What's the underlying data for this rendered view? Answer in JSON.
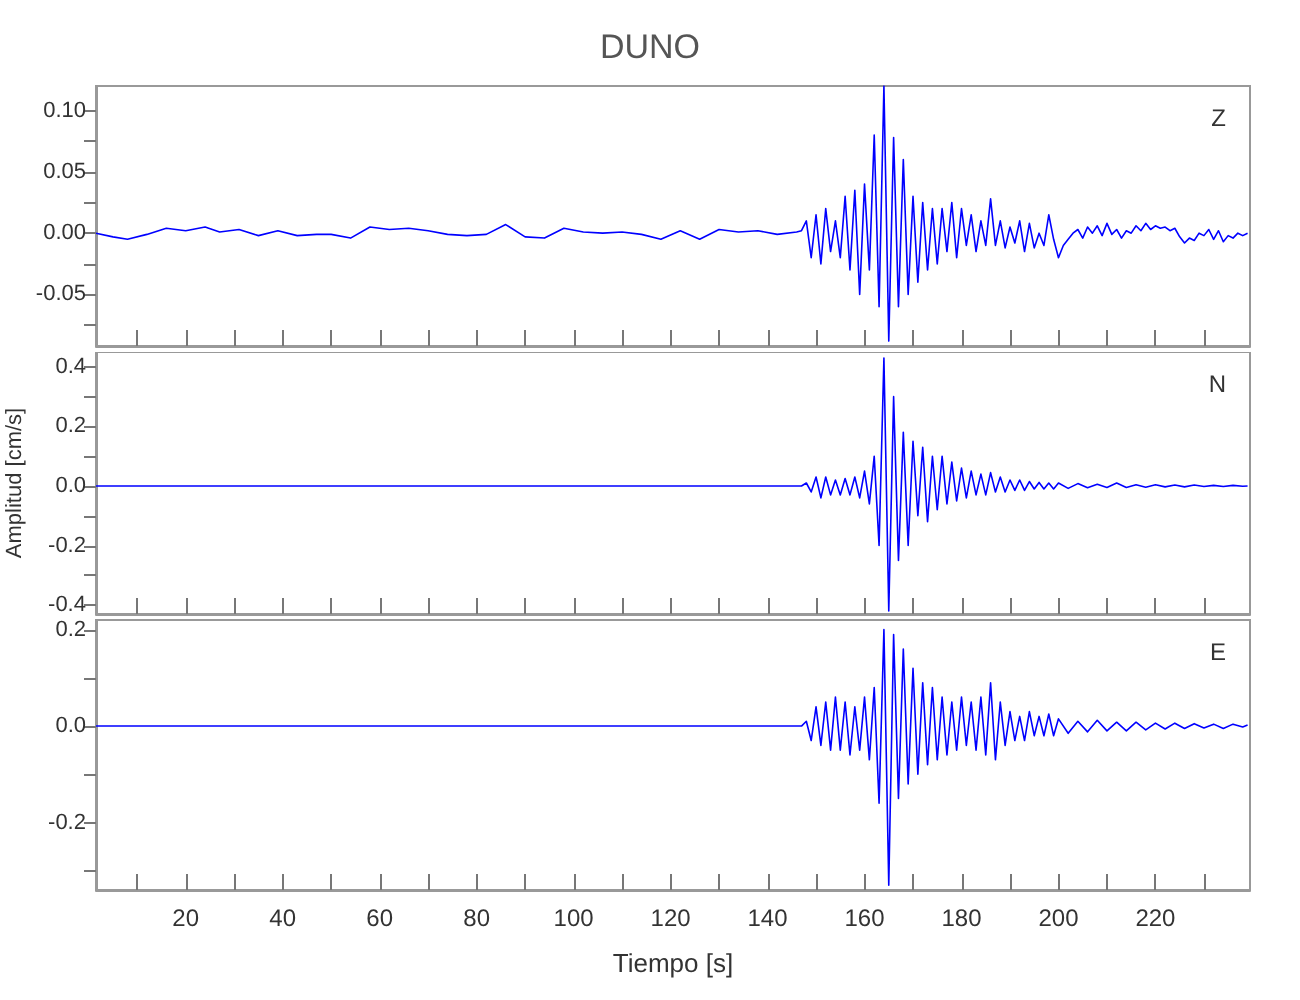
{
  "chart_data": [
    {
      "type": "line",
      "title": "DUNO",
      "annotations": [
        "Z"
      ],
      "tick_labels": "y",
      "grid": false,
      "line_style": "solid",
      "xlim": [
        1.5,
        239.5
      ],
      "xticks": [
        {
          "value": 10,
          "label": null
        },
        20,
        {
          "value": 30,
          "label": null
        },
        40,
        {
          "value": 50,
          "label": null
        },
        60,
        {
          "value": 70,
          "label": null
        },
        80,
        {
          "value": 90,
          "label": null
        },
        100,
        {
          "value": 110,
          "label": null
        },
        120,
        {
          "value": 130,
          "label": null
        },
        140,
        {
          "value": 150,
          "label": null
        },
        160,
        {
          "value": 170,
          "label": null
        },
        180,
        {
          "value": 190,
          "label": null
        },
        200,
        {
          "value": 210,
          "label": null
        },
        220,
        {
          "value": 230,
          "label": null
        }
      ],
      "ylim": [
        -0.092,
        0.12
      ],
      "yticks": [
        {
          "value": -0.075,
          "label": null
        },
        {
          "value": -0.05,
          "label": "-0.05"
        },
        {
          "value": -0.025,
          "label": null
        },
        {
          "value": 0,
          "label": "0.00"
        },
        {
          "value": 0.025,
          "label": null
        },
        {
          "value": 0.05,
          "label": "0.05"
        },
        {
          "value": 0.075,
          "label": null
        },
        {
          "value": 0.1,
          "label": "0.10"
        }
      ],
      "series": [
        {
          "color": "#0000ff",
          "x": [
            1.5,
            5,
            8,
            12,
            16,
            20,
            24,
            27,
            31,
            35,
            39,
            43,
            47,
            50,
            54,
            58,
            62,
            66,
            70,
            74,
            78,
            82,
            86,
            90,
            94,
            98,
            102,
            106,
            110,
            114,
            118,
            122,
            126,
            130,
            134,
            138,
            142,
            146,
            147,
            148,
            149,
            150,
            151,
            152,
            153,
            154,
            155,
            156,
            157,
            158,
            159,
            160,
            161,
            162,
            163,
            164,
            165,
            166,
            167,
            168,
            169,
            170,
            171,
            172,
            173,
            174,
            175,
            176,
            177,
            178,
            179,
            180,
            181,
            182,
            183,
            184,
            185,
            186,
            187,
            188,
            189,
            190,
            191,
            192,
            193,
            194,
            195,
            196,
            197,
            198,
            199,
            200,
            201,
            202,
            203,
            204,
            205,
            206,
            207,
            208,
            209,
            210,
            211,
            212,
            213,
            214,
            215,
            216,
            217,
            218,
            219,
            220,
            221,
            222,
            223,
            224,
            225,
            226,
            227,
            228,
            229,
            230,
            231,
            232,
            233,
            234,
            235,
            236,
            237,
            238,
            239
          ],
          "values": [
            0,
            -0.003,
            -0.005,
            -0.001,
            0.004,
            0.002,
            0.005,
            0.001,
            0.003,
            -0.002,
            0.002,
            -0.002,
            -0.001,
            -0.001,
            -0.004,
            0.005,
            0.003,
            0.004,
            0.002,
            -0.001,
            -0.002,
            -0.001,
            0.007,
            -0.003,
            -0.004,
            0.004,
            0.001,
            0,
            0.001,
            -0.001,
            -0.005,
            0.002,
            -0.005,
            0.003,
            0.001,
            0.002,
            -0.001,
            0.001,
            0.002,
            0.01,
            -0.02,
            0.015,
            -0.025,
            0.02,
            -0.015,
            0.01,
            -0.02,
            0.03,
            -0.03,
            0.035,
            -0.05,
            0.04,
            -0.03,
            0.08,
            -0.06,
            0.12,
            -0.088,
            0.078,
            -0.06,
            0.06,
            -0.05,
            0.03,
            -0.04,
            0.025,
            -0.03,
            0.02,
            -0.025,
            0.02,
            -0.015,
            0.025,
            -0.02,
            0.02,
            -0.01,
            0.015,
            -0.015,
            0.01,
            -0.01,
            0.028,
            -0.01,
            0.01,
            -0.012,
            0.005,
            -0.008,
            0.01,
            -0.015,
            0.008,
            -0.012,
            0,
            -0.01,
            0.015,
            -0.005,
            -0.02,
            -0.01,
            -0.005,
            0,
            0.003,
            -0.004,
            0.005,
            0,
            0.006,
            -0.002,
            0.008,
            -0.001,
            0.003,
            -0.004,
            0.002,
            0,
            0.006,
            0.002,
            0.008,
            0.003,
            0.006,
            0.004,
            0.005,
            0.002,
            0.004,
            -0.003,
            -0.008,
            -0.004,
            -0.006,
            0,
            -0.002,
            0.003,
            -0.005,
            0.002,
            -0.007,
            -0.002,
            -0.004,
            0,
            -0.002,
            0
          ]
        }
      ]
    },
    {
      "type": "line",
      "ylabel": "Amplitud [cm/s]",
      "annotations": [
        "N"
      ],
      "tick_labels": "y",
      "grid": false,
      "line_style": "solid",
      "xlim": [
        1.5,
        239.5
      ],
      "xticks": [
        {
          "value": 10,
          "label": null
        },
        20,
        {
          "value": 30,
          "label": null
        },
        40,
        {
          "value": 50,
          "label": null
        },
        60,
        {
          "value": 70,
          "label": null
        },
        80,
        {
          "value": 90,
          "label": null
        },
        100,
        {
          "value": 110,
          "label": null
        },
        120,
        {
          "value": 130,
          "label": null
        },
        140,
        {
          "value": 150,
          "label": null
        },
        160,
        {
          "value": 170,
          "label": null
        },
        180,
        {
          "value": 190,
          "label": null
        },
        200,
        {
          "value": 210,
          "label": null
        },
        220,
        {
          "value": 230,
          "label": null
        }
      ],
      "ylim": [
        -0.43,
        0.45
      ],
      "yticks": [
        -0.4,
        {
          "value": -0.3,
          "label": null
        },
        -0.2,
        {
          "value": -0.1,
          "label": null
        },
        {
          "value": 0,
          "label": "0.0"
        },
        {
          "value": 0.1,
          "label": null
        },
        0.2,
        {
          "value": 0.3,
          "label": null
        },
        0.4
      ],
      "series": [
        {
          "color": "#0000ff",
          "x": [
            1.5,
            147,
            148,
            149,
            150,
            151,
            152,
            153,
            154,
            155,
            156,
            157,
            158,
            159,
            160,
            161,
            162,
            163,
            164,
            165,
            166,
            167,
            168,
            169,
            170,
            171,
            172,
            173,
            174,
            175,
            176,
            177,
            178,
            179,
            180,
            181,
            182,
            183,
            184,
            185,
            186,
            187,
            188,
            189,
            190,
            191,
            192,
            193,
            194,
            195,
            196,
            197,
            198,
            199,
            200,
            202,
            204,
            206,
            208,
            210,
            212,
            214,
            216,
            218,
            220,
            222,
            224,
            226,
            228,
            230,
            232,
            234,
            236,
            238,
            239
          ],
          "values": [
            0,
            0,
            0.01,
            -0.02,
            0.03,
            -0.04,
            0.03,
            -0.03,
            0.02,
            -0.03,
            0.025,
            -0.03,
            0.03,
            -0.04,
            0.05,
            -0.06,
            0.1,
            -0.2,
            0.43,
            -0.42,
            0.3,
            -0.25,
            0.18,
            -0.2,
            0.15,
            -0.1,
            0.13,
            -0.12,
            0.1,
            -0.08,
            0.1,
            -0.06,
            0.08,
            -0.05,
            0.06,
            -0.04,
            0.05,
            -0.03,
            0.04,
            -0.03,
            0.045,
            -0.02,
            0.03,
            -0.02,
            0.02,
            -0.015,
            0.02,
            -0.015,
            0.015,
            -0.01,
            0.012,
            -0.01,
            0.01,
            -0.01,
            0.01,
            -0.008,
            0.008,
            -0.006,
            0.006,
            -0.005,
            0.01,
            -0.005,
            0.004,
            -0.004,
            0.004,
            -0.003,
            0.003,
            -0.003,
            0.003,
            -0.002,
            0.002,
            -0.002,
            0.002,
            -0.001,
            0
          ]
        }
      ]
    },
    {
      "type": "line",
      "xlabel": "Tiempo [s]",
      "annotations": [
        "E"
      ],
      "grid": false,
      "line_style": "solid",
      "xlim": [
        1.5,
        239.5
      ],
      "xticks": [
        {
          "value": 10,
          "label": null
        },
        20,
        {
          "value": 30,
          "label": null
        },
        40,
        {
          "value": 50,
          "label": null
        },
        60,
        {
          "value": 70,
          "label": null
        },
        80,
        {
          "value": 90,
          "label": null
        },
        100,
        {
          "value": 110,
          "label": null
        },
        120,
        {
          "value": 130,
          "label": null
        },
        140,
        {
          "value": 150,
          "label": null
        },
        160,
        {
          "value": 170,
          "label": null
        },
        180,
        {
          "value": 190,
          "label": null
        },
        200,
        {
          "value": 210,
          "label": null
        },
        220,
        {
          "value": 230,
          "label": null
        }
      ],
      "ylim": [
        -0.34,
        0.22
      ],
      "yticks": [
        {
          "value": -0.3,
          "label": null
        },
        -0.2,
        {
          "value": -0.1,
          "label": null
        },
        {
          "value": 0,
          "label": "0.0"
        },
        {
          "value": 0.1,
          "label": null
        },
        0.2
      ],
      "series": [
        {
          "color": "#0000ff",
          "x": [
            1.5,
            147,
            148,
            149,
            150,
            151,
            152,
            153,
            154,
            155,
            156,
            157,
            158,
            159,
            160,
            161,
            162,
            163,
            164,
            165,
            166,
            167,
            168,
            169,
            170,
            171,
            172,
            173,
            174,
            175,
            176,
            177,
            178,
            179,
            180,
            181,
            182,
            183,
            184,
            185,
            186,
            187,
            188,
            189,
            190,
            191,
            192,
            193,
            194,
            195,
            196,
            197,
            198,
            199,
            200,
            202,
            204,
            206,
            208,
            210,
            212,
            214,
            216,
            218,
            220,
            222,
            224,
            226,
            228,
            230,
            232,
            234,
            236,
            238,
            239
          ],
          "values": [
            0,
            0,
            0.01,
            -0.03,
            0.04,
            -0.04,
            0.05,
            -0.05,
            0.06,
            -0.05,
            0.05,
            -0.06,
            0.04,
            -0.05,
            0.06,
            -0.07,
            0.08,
            -0.16,
            0.2,
            -0.33,
            0.19,
            -0.15,
            0.16,
            -0.12,
            0.12,
            -0.1,
            0.09,
            -0.08,
            0.08,
            -0.07,
            0.06,
            -0.06,
            0.05,
            -0.05,
            0.06,
            -0.04,
            0.05,
            -0.05,
            0.06,
            -0.06,
            0.09,
            -0.07,
            0.05,
            -0.04,
            0.03,
            -0.03,
            0.02,
            -0.03,
            0.03,
            -0.02,
            0.02,
            -0.02,
            0.025,
            -0.02,
            0.015,
            -0.015,
            0.01,
            -0.012,
            0.012,
            -0.01,
            0.008,
            -0.01,
            0.008,
            -0.008,
            0.006,
            -0.006,
            0.006,
            -0.005,
            0.005,
            -0.004,
            0.004,
            -0.005,
            0.004,
            -0.002,
            0.002
          ]
        }
      ]
    }
  ]
}
